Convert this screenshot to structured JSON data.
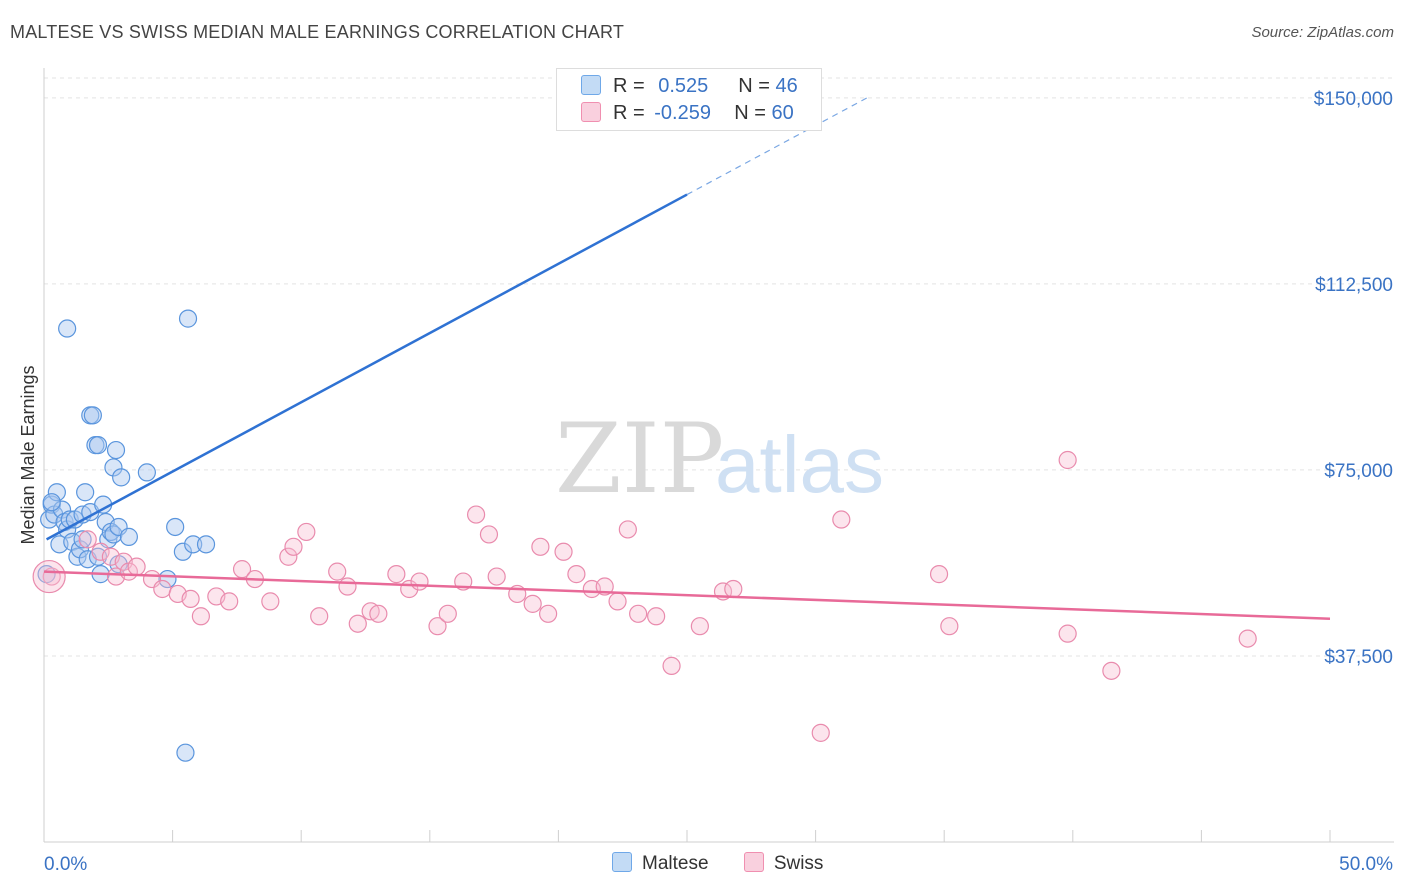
{
  "title": "MALTESE VS SWISS MEDIAN MALE EARNINGS CORRELATION CHART",
  "source": "Source: ZipAtlas.com",
  "watermark": {
    "zip": "ZIP",
    "atlas": "atlas"
  },
  "legend": {
    "rows": [
      {
        "r_label": "R =",
        "r_value": "0.525",
        "n_label": "N =",
        "n_value": "46",
        "color": "#6fa8e8"
      },
      {
        "r_label": "R =",
        "r_value": "-0.259",
        "n_label": "N =",
        "n_value": "60",
        "color": "#f08fb0"
      }
    ]
  },
  "bottom_legend": [
    {
      "label": "Maltese",
      "color": "#6fa8e8"
    },
    {
      "label": "Swiss",
      "color": "#f08fb0"
    }
  ],
  "chart_data": {
    "type": "scatter",
    "xlabel": "",
    "ylabel": "Median Male Earnings",
    "xlim": [
      0,
      50
    ],
    "ylim": [
      0,
      154000
    ],
    "x_tick_labels": [
      "0.0%",
      "50.0%"
    ],
    "y_ticks": [
      37500,
      75000,
      112500,
      150000
    ],
    "y_tick_labels": [
      "$37,500",
      "$75,000",
      "$112,500",
      "$150,000"
    ],
    "series": [
      {
        "name": "Maltese",
        "color": "#3a7bd5",
        "points": [
          [
            0.1,
            54000
          ],
          [
            0.2,
            65000
          ],
          [
            0.3,
            68000
          ],
          [
            0.4,
            66000
          ],
          [
            0.5,
            70500
          ],
          [
            0.6,
            60000
          ],
          [
            0.7,
            67000
          ],
          [
            0.8,
            64500
          ],
          [
            0.9,
            63000
          ],
          [
            0.9,
            103500
          ],
          [
            1.0,
            65000
          ],
          [
            1.1,
            60500
          ],
          [
            1.2,
            65000
          ],
          [
            1.3,
            57500
          ],
          [
            1.4,
            59000
          ],
          [
            1.5,
            66000
          ],
          [
            1.5,
            61000
          ],
          [
            1.6,
            70500
          ],
          [
            1.7,
            57000
          ],
          [
            1.8,
            66500
          ],
          [
            1.8,
            86000
          ],
          [
            1.9,
            86000
          ],
          [
            2.0,
            80000
          ],
          [
            2.1,
            80000
          ],
          [
            2.1,
            57500
          ],
          [
            2.2,
            54000
          ],
          [
            2.3,
            68000
          ],
          [
            2.4,
            64500
          ],
          [
            2.5,
            61000
          ],
          [
            2.6,
            62500
          ],
          [
            2.7,
            75500
          ],
          [
            2.7,
            62000
          ],
          [
            2.8,
            79000
          ],
          [
            2.9,
            63500
          ],
          [
            2.9,
            56000
          ],
          [
            3.0,
            73500
          ],
          [
            3.3,
            61500
          ],
          [
            4.0,
            74500
          ],
          [
            4.8,
            53000
          ],
          [
            5.1,
            63500
          ],
          [
            5.4,
            58500
          ],
          [
            5.5,
            18000
          ],
          [
            5.6,
            105500
          ],
          [
            5.8,
            60000
          ],
          [
            6.3,
            60000
          ],
          [
            0.3,
            68500
          ]
        ],
        "trend": {
          "x0": 0.1,
          "y0": 61000,
          "x1": 25,
          "y1": 130500,
          "dash_to_x": 32,
          "dash_to_y": 150000
        }
      },
      {
        "name": "Swiss",
        "color": "#e85d92",
        "points": [
          [
            0.3,
            53500
          ],
          [
            1.7,
            61000
          ],
          [
            2.2,
            58500
          ],
          [
            2.6,
            57500
          ],
          [
            2.8,
            53500
          ],
          [
            3.1,
            56500
          ],
          [
            3.3,
            54500
          ],
          [
            3.6,
            55500
          ],
          [
            4.2,
            53000
          ],
          [
            4.6,
            51000
          ],
          [
            5.2,
            50000
          ],
          [
            5.7,
            49000
          ],
          [
            6.1,
            45500
          ],
          [
            6.7,
            49500
          ],
          [
            7.2,
            48500
          ],
          [
            7.7,
            55000
          ],
          [
            8.2,
            53000
          ],
          [
            8.8,
            48500
          ],
          [
            9.5,
            57500
          ],
          [
            9.7,
            59500
          ],
          [
            10.2,
            62500
          ],
          [
            10.7,
            45500
          ],
          [
            11.4,
            54500
          ],
          [
            11.8,
            51500
          ],
          [
            12.2,
            44000
          ],
          [
            12.7,
            46500
          ],
          [
            13.0,
            46000
          ],
          [
            13.7,
            54000
          ],
          [
            14.2,
            51000
          ],
          [
            14.6,
            52500
          ],
          [
            15.3,
            43500
          ],
          [
            15.7,
            46000
          ],
          [
            16.3,
            52500
          ],
          [
            16.8,
            66000
          ],
          [
            17.3,
            62000
          ],
          [
            17.6,
            53500
          ],
          [
            18.4,
            50000
          ],
          [
            19.0,
            48000
          ],
          [
            19.3,
            59500
          ],
          [
            19.6,
            46000
          ],
          [
            20.2,
            58500
          ],
          [
            20.7,
            54000
          ],
          [
            21.3,
            51000
          ],
          [
            21.8,
            51500
          ],
          [
            22.3,
            48500
          ],
          [
            22.7,
            63000
          ],
          [
            23.1,
            46000
          ],
          [
            23.8,
            45500
          ],
          [
            24.4,
            35500
          ],
          [
            25.5,
            43500
          ],
          [
            26.4,
            50500
          ],
          [
            26.8,
            51000
          ],
          [
            30.2,
            22000
          ],
          [
            31.0,
            65000
          ],
          [
            34.8,
            54000
          ],
          [
            35.2,
            43500
          ],
          [
            39.8,
            42000
          ],
          [
            39.8,
            77000
          ],
          [
            41.5,
            34500
          ],
          [
            46.8,
            41000
          ]
        ],
        "trend": {
          "x0": 0,
          "y0": 54500,
          "x1": 50,
          "y1": 45000
        }
      }
    ]
  }
}
